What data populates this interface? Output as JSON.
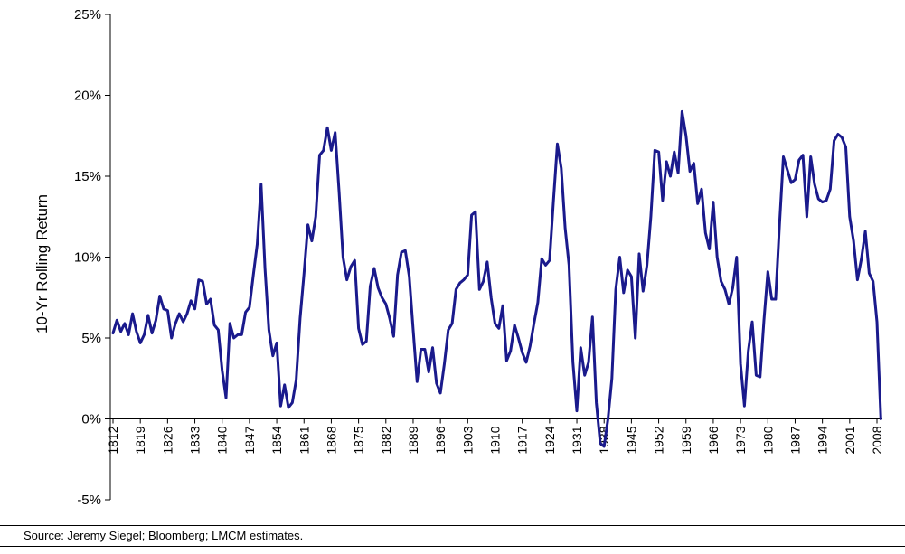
{
  "chart_data": {
    "type": "line",
    "title": "",
    "xlabel": "",
    "ylabel": "10-Yr Rolling Return",
    "ylim": [
      -5,
      25
    ],
    "y_ticks": [
      "-5%",
      "0%",
      "5%",
      "10%",
      "15%",
      "20%",
      "25%"
    ],
    "y_tick_values": [
      -5,
      0,
      5,
      10,
      15,
      20,
      25
    ],
    "x_range": [
      1812,
      2008
    ],
    "x_ticks": [
      "1812",
      "1819",
      "1826",
      "1833",
      "1840",
      "1847",
      "1854",
      "1861",
      "1868",
      "1875",
      "1882",
      "1889",
      "1896",
      "1903",
      "1910",
      "1917",
      "1924",
      "1931",
      "1938",
      "1945",
      "1952",
      "1959",
      "1966",
      "1973",
      "1980",
      "1987",
      "1994",
      "2001",
      "2008"
    ],
    "x_tick_values": [
      1812,
      1819,
      1826,
      1833,
      1840,
      1847,
      1854,
      1861,
      1868,
      1875,
      1882,
      1889,
      1896,
      1903,
      1910,
      1917,
      1924,
      1931,
      1938,
      1945,
      1952,
      1959,
      1966,
      1973,
      1980,
      1987,
      1994,
      2001,
      2008
    ],
    "grid": false,
    "line_color": "#1a1a8c",
    "series": [
      {
        "points": [
          [
            1812,
            5.3
          ],
          [
            1813,
            6.1
          ],
          [
            1814,
            5.4
          ],
          [
            1815,
            5.9
          ],
          [
            1816,
            5.2
          ],
          [
            1817,
            6.5
          ],
          [
            1818,
            5.4
          ],
          [
            1819,
            4.7
          ],
          [
            1820,
            5.2
          ],
          [
            1821,
            6.4
          ],
          [
            1822,
            5.3
          ],
          [
            1823,
            6.1
          ],
          [
            1824,
            7.6
          ],
          [
            1825,
            6.8
          ],
          [
            1826,
            6.7
          ],
          [
            1827,
            5.0
          ],
          [
            1828,
            5.9
          ],
          [
            1829,
            6.5
          ],
          [
            1830,
            6.0
          ],
          [
            1831,
            6.5
          ],
          [
            1832,
            7.3
          ],
          [
            1833,
            6.8
          ],
          [
            1834,
            8.6
          ],
          [
            1835,
            8.5
          ],
          [
            1836,
            7.1
          ],
          [
            1837,
            7.4
          ],
          [
            1838,
            5.8
          ],
          [
            1839,
            5.5
          ],
          [
            1840,
            3.0
          ],
          [
            1841,
            1.3
          ],
          [
            1842,
            5.9
          ],
          [
            1843,
            5.0
          ],
          [
            1844,
            5.2
          ],
          [
            1845,
            5.2
          ],
          [
            1846,
            6.6
          ],
          [
            1847,
            6.9
          ],
          [
            1848,
            8.9
          ],
          [
            1849,
            10.8
          ],
          [
            1850,
            14.5
          ],
          [
            1851,
            9.3
          ],
          [
            1852,
            5.5
          ],
          [
            1853,
            3.9
          ],
          [
            1854,
            4.7
          ],
          [
            1855,
            0.8
          ],
          [
            1856,
            2.1
          ],
          [
            1857,
            0.7
          ],
          [
            1858,
            1.0
          ],
          [
            1859,
            2.4
          ],
          [
            1860,
            6.2
          ],
          [
            1861,
            9.0
          ],
          [
            1862,
            12.0
          ],
          [
            1863,
            11.0
          ],
          [
            1864,
            12.5
          ],
          [
            1865,
            16.3
          ],
          [
            1866,
            16.6
          ],
          [
            1867,
            18.0
          ],
          [
            1868,
            16.6
          ],
          [
            1869,
            17.7
          ],
          [
            1870,
            14.0
          ],
          [
            1871,
            10.0
          ],
          [
            1872,
            8.6
          ],
          [
            1873,
            9.4
          ],
          [
            1874,
            9.8
          ],
          [
            1875,
            5.6
          ],
          [
            1876,
            4.6
          ],
          [
            1877,
            4.8
          ],
          [
            1878,
            8.2
          ],
          [
            1879,
            9.3
          ],
          [
            1880,
            8.1
          ],
          [
            1881,
            7.5
          ],
          [
            1882,
            7.1
          ],
          [
            1883,
            6.2
          ],
          [
            1884,
            5.1
          ],
          [
            1885,
            8.9
          ],
          [
            1886,
            10.3
          ],
          [
            1887,
            10.4
          ],
          [
            1888,
            8.8
          ],
          [
            1889,
            5.5
          ],
          [
            1890,
            2.3
          ],
          [
            1891,
            4.3
          ],
          [
            1892,
            4.3
          ],
          [
            1893,
            2.9
          ],
          [
            1894,
            4.4
          ],
          [
            1895,
            2.2
          ],
          [
            1896,
            1.6
          ],
          [
            1897,
            3.4
          ],
          [
            1898,
            5.5
          ],
          [
            1899,
            5.9
          ],
          [
            1900,
            8.0
          ],
          [
            1901,
            8.4
          ],
          [
            1902,
            8.6
          ],
          [
            1903,
            8.9
          ],
          [
            1904,
            12.6
          ],
          [
            1905,
            12.8
          ],
          [
            1906,
            8.0
          ],
          [
            1907,
            8.5
          ],
          [
            1908,
            9.7
          ],
          [
            1909,
            7.5
          ],
          [
            1910,
            5.9
          ],
          [
            1911,
            5.6
          ],
          [
            1912,
            7.0
          ],
          [
            1913,
            3.6
          ],
          [
            1914,
            4.2
          ],
          [
            1915,
            5.8
          ],
          [
            1916,
            5.0
          ],
          [
            1917,
            4.1
          ],
          [
            1918,
            3.5
          ],
          [
            1919,
            4.5
          ],
          [
            1920,
            5.9
          ],
          [
            1921,
            7.2
          ],
          [
            1922,
            9.9
          ],
          [
            1923,
            9.5
          ],
          [
            1924,
            9.8
          ],
          [
            1925,
            13.5
          ],
          [
            1926,
            17.0
          ],
          [
            1927,
            15.5
          ],
          [
            1928,
            11.8
          ],
          [
            1929,
            9.5
          ],
          [
            1930,
            3.5
          ],
          [
            1931,
            0.5
          ],
          [
            1932,
            4.4
          ],
          [
            1933,
            2.7
          ],
          [
            1934,
            3.5
          ],
          [
            1935,
            6.3
          ],
          [
            1936,
            1.0
          ],
          [
            1937,
            -1.5
          ],
          [
            1938,
            -1.7
          ],
          [
            1939,
            0.0
          ],
          [
            1940,
            2.5
          ],
          [
            1941,
            8.0
          ],
          [
            1942,
            10.0
          ],
          [
            1943,
            7.8
          ],
          [
            1944,
            9.2
          ],
          [
            1945,
            8.8
          ],
          [
            1946,
            5.0
          ],
          [
            1947,
            10.2
          ],
          [
            1948,
            7.9
          ],
          [
            1949,
            9.5
          ],
          [
            1950,
            12.5
          ],
          [
            1951,
            16.6
          ],
          [
            1952,
            16.5
          ],
          [
            1953,
            13.5
          ],
          [
            1954,
            15.9
          ],
          [
            1955,
            15.0
          ],
          [
            1956,
            16.5
          ],
          [
            1957,
            15.2
          ],
          [
            1958,
            19.0
          ],
          [
            1959,
            17.5
          ],
          [
            1960,
            15.3
          ],
          [
            1961,
            15.8
          ],
          [
            1962,
            13.3
          ],
          [
            1963,
            14.2
          ],
          [
            1964,
            11.5
          ],
          [
            1965,
            10.5
          ],
          [
            1966,
            13.4
          ],
          [
            1967,
            10.0
          ],
          [
            1968,
            8.5
          ],
          [
            1969,
            8.0
          ],
          [
            1970,
            7.1
          ],
          [
            1971,
            8.1
          ],
          [
            1972,
            10.0
          ],
          [
            1973,
            3.4
          ],
          [
            1974,
            0.8
          ],
          [
            1975,
            4.2
          ],
          [
            1976,
            6.0
          ],
          [
            1977,
            2.7
          ],
          [
            1978,
            2.6
          ],
          [
            1979,
            6.1
          ],
          [
            1980,
            9.1
          ],
          [
            1981,
            7.4
          ],
          [
            1982,
            7.4
          ],
          [
            1983,
            12.0
          ],
          [
            1984,
            16.2
          ],
          [
            1985,
            15.4
          ],
          [
            1986,
            14.6
          ],
          [
            1987,
            14.8
          ],
          [
            1988,
            16.0
          ],
          [
            1989,
            16.3
          ],
          [
            1990,
            12.5
          ],
          [
            1991,
            16.2
          ],
          [
            1992,
            14.5
          ],
          [
            1993,
            13.6
          ],
          [
            1994,
            13.4
          ],
          [
            1995,
            13.5
          ],
          [
            1996,
            14.2
          ],
          [
            1997,
            17.2
          ],
          [
            1998,
            17.6
          ],
          [
            1999,
            17.4
          ],
          [
            2000,
            16.8
          ],
          [
            2001,
            12.5
          ],
          [
            2002,
            11.0
          ],
          [
            2003,
            8.6
          ],
          [
            2004,
            9.9
          ],
          [
            2005,
            11.6
          ],
          [
            2006,
            9.0
          ],
          [
            2007,
            8.5
          ],
          [
            2008,
            6.0
          ],
          [
            2009,
            0.0
          ]
        ]
      }
    ]
  },
  "source": "Source: Jeremy Siegel; Bloomberg; LMCM estimates."
}
